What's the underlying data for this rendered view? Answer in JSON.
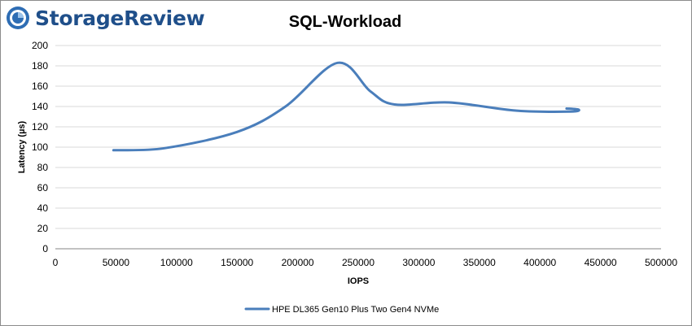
{
  "brand": {
    "name": "StorageReview",
    "icon": "storagereview-logo-icon",
    "color": "#1f4f8a"
  },
  "chart_data": {
    "type": "line",
    "title": "SQL-Workload",
    "xlabel": "IOPS",
    "ylabel": "Latency (µs)",
    "xlim": [
      0,
      500000
    ],
    "ylim": [
      0,
      200
    ],
    "xticks": [
      0,
      50000,
      100000,
      150000,
      200000,
      250000,
      300000,
      350000,
      400000,
      450000,
      500000
    ],
    "yticks": [
      0,
      20,
      40,
      60,
      80,
      100,
      120,
      140,
      160,
      180,
      200
    ],
    "grid": "horizontal",
    "legend_position": "bottom",
    "series": [
      {
        "name": "HPE DL365 Gen10 Plus Two Gen4 NVMe",
        "color": "#4a7ebb",
        "points": [
          {
            "x": 48000,
            "y": 97
          },
          {
            "x": 90000,
            "y": 99
          },
          {
            "x": 150000,
            "y": 115
          },
          {
            "x": 190000,
            "y": 140
          },
          {
            "x": 233000,
            "y": 183
          },
          {
            "x": 260000,
            "y": 155
          },
          {
            "x": 280000,
            "y": 142
          },
          {
            "x": 325000,
            "y": 144
          },
          {
            "x": 380000,
            "y": 136
          },
          {
            "x": 425000,
            "y": 135
          },
          {
            "x": 432000,
            "y": 137
          },
          {
            "x": 422000,
            "y": 138
          }
        ]
      }
    ]
  }
}
